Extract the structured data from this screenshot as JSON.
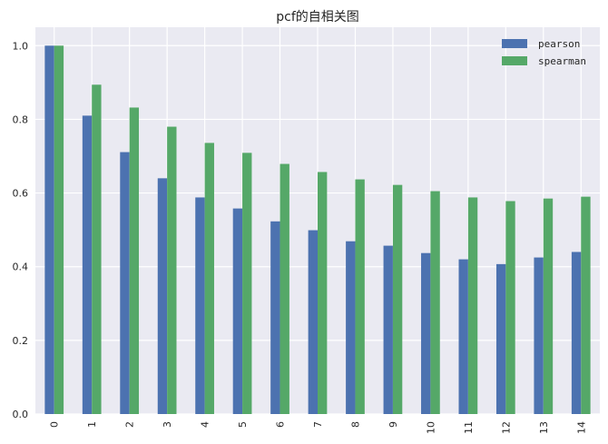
{
  "chart_data": {
    "type": "bar",
    "title": "pcf的自相关图",
    "xlabel": "",
    "ylabel": "",
    "categories": [
      "0",
      "1",
      "2",
      "3",
      "4",
      "5",
      "6",
      "7",
      "8",
      "9",
      "10",
      "11",
      "12",
      "13",
      "14"
    ],
    "series": [
      {
        "name": "pearson",
        "color": "#4C72B0",
        "values": [
          1.0,
          0.81,
          0.711,
          0.64,
          0.588,
          0.558,
          0.523,
          0.499,
          0.469,
          0.457,
          0.437,
          0.42,
          0.407,
          0.425,
          0.44
        ]
      },
      {
        "name": "spearman",
        "color": "#55A868",
        "values": [
          1.0,
          0.894,
          0.832,
          0.78,
          0.736,
          0.709,
          0.679,
          0.657,
          0.637,
          0.622,
          0.605,
          0.588,
          0.578,
          0.585,
          0.59
        ]
      }
    ],
    "ylim": [
      0,
      1.05
    ],
    "yticks": [
      "0.0",
      "0.2",
      "0.4",
      "0.6",
      "0.8",
      "1.0"
    ],
    "ytick_values": [
      0,
      0.2,
      0.4,
      0.6,
      0.8,
      1.0
    ],
    "xtick_rotation": 90,
    "grid": true,
    "legend_position": "upper right",
    "background": "#EAEAF2",
    "grid_color": "#FFFFFF"
  }
}
